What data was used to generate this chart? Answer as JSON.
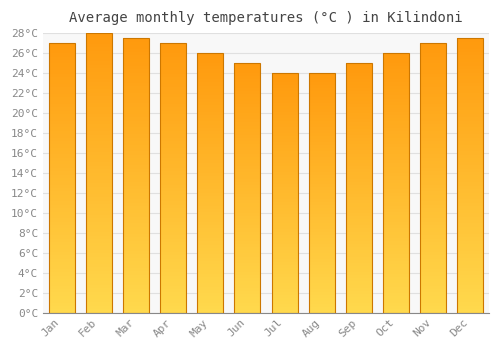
{
  "title": "Average monthly temperatures (°C ) in Kilindoni",
  "months": [
    "Jan",
    "Feb",
    "Mar",
    "Apr",
    "May",
    "Jun",
    "Jul",
    "Aug",
    "Sep",
    "Oct",
    "Nov",
    "Dec"
  ],
  "temperatures": [
    27,
    28,
    27.5,
    27,
    26,
    25,
    24,
    24,
    25,
    26,
    27,
    27.5
  ],
  "bar_color_main": "#FFAA00",
  "bar_color_light": "#FFD060",
  "bar_color_dark": "#F08000",
  "bar_edge_color": "#CC7700",
  "ylim_max": 28,
  "ytick_step": 2,
  "background_color": "#FFFFFF",
  "plot_bg_color": "#F8F8F8",
  "title_fontsize": 10,
  "tick_fontsize": 8,
  "grid_color": "#E0E0E0",
  "title_color": "#444444",
  "tick_color": "#888888",
  "font_family": "monospace",
  "bar_width": 0.7
}
